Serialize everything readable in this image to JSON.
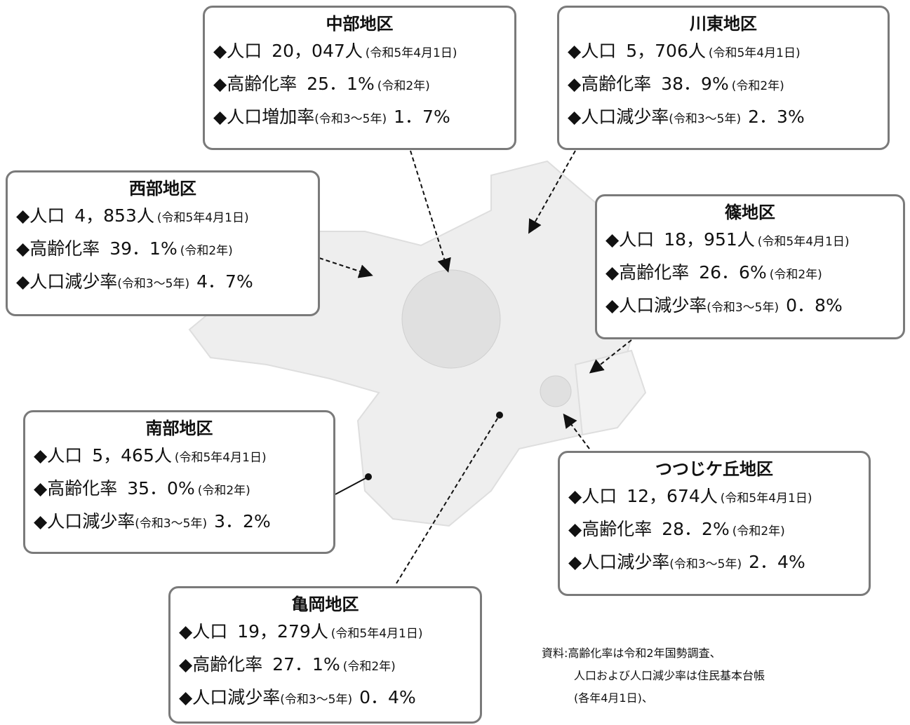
{
  "regions": [
    {
      "name": "中部地区",
      "lines": [
        {
          "label": "◆人口",
          "value": "20，047人",
          "note": "(令和5年4月1日)"
        },
        {
          "label": "◆高齢化率",
          "value": "25．1%",
          "note": "(令和2年)"
        },
        {
          "label": "◆人口増加率",
          "note": "(令和3～5年)",
          "value": "1．7%"
        }
      ]
    },
    {
      "name": "川東地区",
      "lines": [
        {
          "label": "◆人口",
          "value": "5，706人",
          "note": "(令和5年4月1日)"
        },
        {
          "label": "◆高齢化率",
          "value": "38．9%",
          "note": "(令和2年)"
        },
        {
          "label": "◆人口減少率",
          "note": "(令和3～5年)",
          "value": "2．3%"
        }
      ]
    },
    {
      "name": "西部地区",
      "lines": [
        {
          "label": "◆人口",
          "value": "4，853人",
          "note": "(令和5年4月1日)"
        },
        {
          "label": "◆高齢化率",
          "value": "39．1%",
          "note": "(令和2年)"
        },
        {
          "label": "◆人口減少率",
          "note": "(令和3～5年)",
          "value": "4．7%"
        }
      ]
    },
    {
      "name": "篠地区",
      "lines": [
        {
          "label": "◆人口",
          "value": "18，951人",
          "note": "(令和5年4月1日)"
        },
        {
          "label": "◆高齢化率",
          "value": "26．6%",
          "note": "(令和2年)"
        },
        {
          "label": "◆人口減少率",
          "note": "(令和3～5年)",
          "value": "0．8%"
        }
      ]
    },
    {
      "name": "南部地区",
      "lines": [
        {
          "label": "◆人口",
          "value": "5，465人",
          "note": "(令和5年4月1日)"
        },
        {
          "label": "◆高齢化率",
          "value": "35．0%",
          "note": "(令和2年)"
        },
        {
          "label": "◆人口減少率",
          "note": "(令和3～5年)",
          "value": "3．2%"
        }
      ]
    },
    {
      "name": "つつじケ丘地区",
      "lines": [
        {
          "label": "◆人口",
          "value": "12，674人",
          "note": "(令和5年4月1日)"
        },
        {
          "label": "◆高齢化率",
          "value": "28．2%",
          "note": "(令和2年)"
        },
        {
          "label": "◆人口減少率",
          "note": "(令和3～5年)",
          "value": "2．4%"
        }
      ]
    },
    {
      "name": "亀岡地区",
      "lines": [
        {
          "label": "◆人口",
          "value": "19，279人",
          "note": "(令和5年4月1日)"
        },
        {
          "label": "◆高齢化率",
          "value": "27．1%",
          "note": "(令和2年)"
        },
        {
          "label": "◆人口減少率",
          "note": "(令和3～5年)",
          "value": "0．4%"
        }
      ]
    }
  ],
  "source": [
    "資料:高齢化率は令和2年国勢調査、",
    "人口および人口減少率は住民基本台帳",
    "(各年4月1日)、"
  ]
}
